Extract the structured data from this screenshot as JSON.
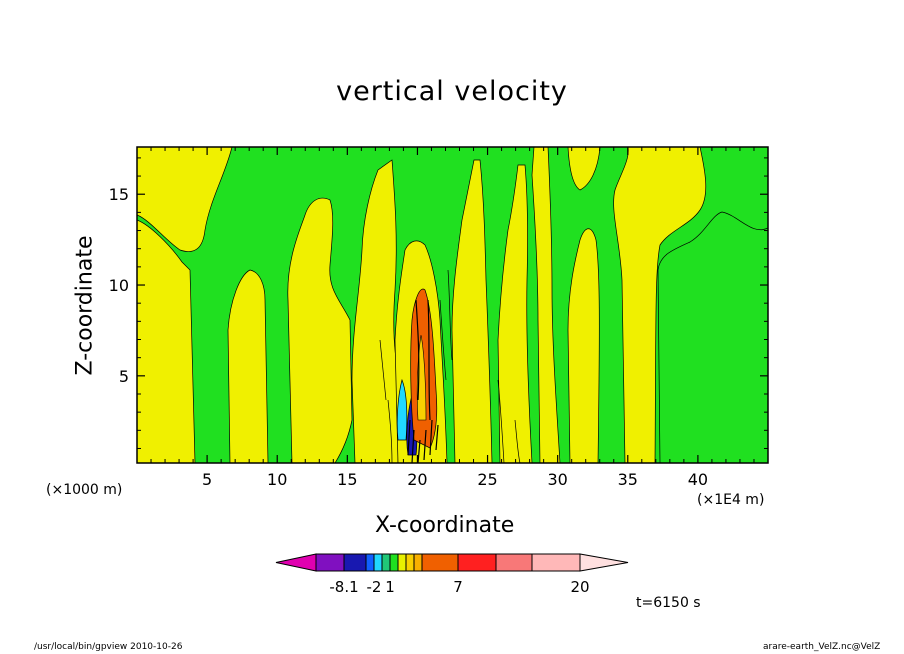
{
  "chart_data": {
    "type": "heatmap",
    "title": "vertical velocity",
    "xlabel": "X-coordinate",
    "ylabel": "Z-coordinate",
    "x_unit_label": "(×1000 m)",
    "x_scale_label": "(×1E4 m)",
    "xlim": [
      0,
      45
    ],
    "ylim": [
      0.2,
      17.6
    ],
    "x_ticks": [
      5,
      10,
      15,
      20,
      25,
      30,
      35,
      40
    ],
    "y_ticks": [
      5,
      10,
      15
    ],
    "time_label": "t=6150 s",
    "colorbar": {
      "colors": [
        "#e000b0",
        "#8010c0",
        "#1818b0",
        "#1060ff",
        "#20d8ff",
        "#20c878",
        "#20e020",
        "#e8f000",
        "#f8d000",
        "#f8b000",
        "#f06000",
        "#ff2020",
        "#f87878",
        "#ffb8b8",
        "#ffe0e0"
      ],
      "labels": [
        "-8.1",
        "-2",
        "1",
        "7",
        "20"
      ]
    },
    "fields": [
      {
        "x": 0.0,
        "z0": 0.2,
        "z1": 17.6,
        "color": "#20e020"
      },
      {
        "x": 1.5,
        "z0": 0.2,
        "z1": 13.0,
        "color": "#f0f000"
      },
      {
        "x": 4.2,
        "z0": 0.2,
        "z1": 17.6,
        "color": "#20e020"
      },
      {
        "x": 10.5,
        "z0": 0.2,
        "z1": 17.6,
        "color": "#f0f000"
      },
      {
        "x": 20.5,
        "z0": 1.0,
        "z1": 9.5,
        "color": "#f06000"
      },
      {
        "x": 19.8,
        "z0": 2.0,
        "z1": 5.5,
        "color": "#20d8ff"
      },
      {
        "x": 28.0,
        "z0": 0.2,
        "z1": 17.6,
        "color": "#f0f000"
      },
      {
        "x": 33.0,
        "z0": 0.2,
        "z1": 17.6,
        "color": "#f0f000"
      },
      {
        "x": 37.0,
        "z0": 0.2,
        "z1": 14.0,
        "color": "#f0f000"
      }
    ],
    "grid": false,
    "legend": "bottom"
  },
  "footer": {
    "left": "/usr/local/bin/gpview  2010-10-26",
    "right": "arare-earth_VelZ.nc@VelZ"
  }
}
